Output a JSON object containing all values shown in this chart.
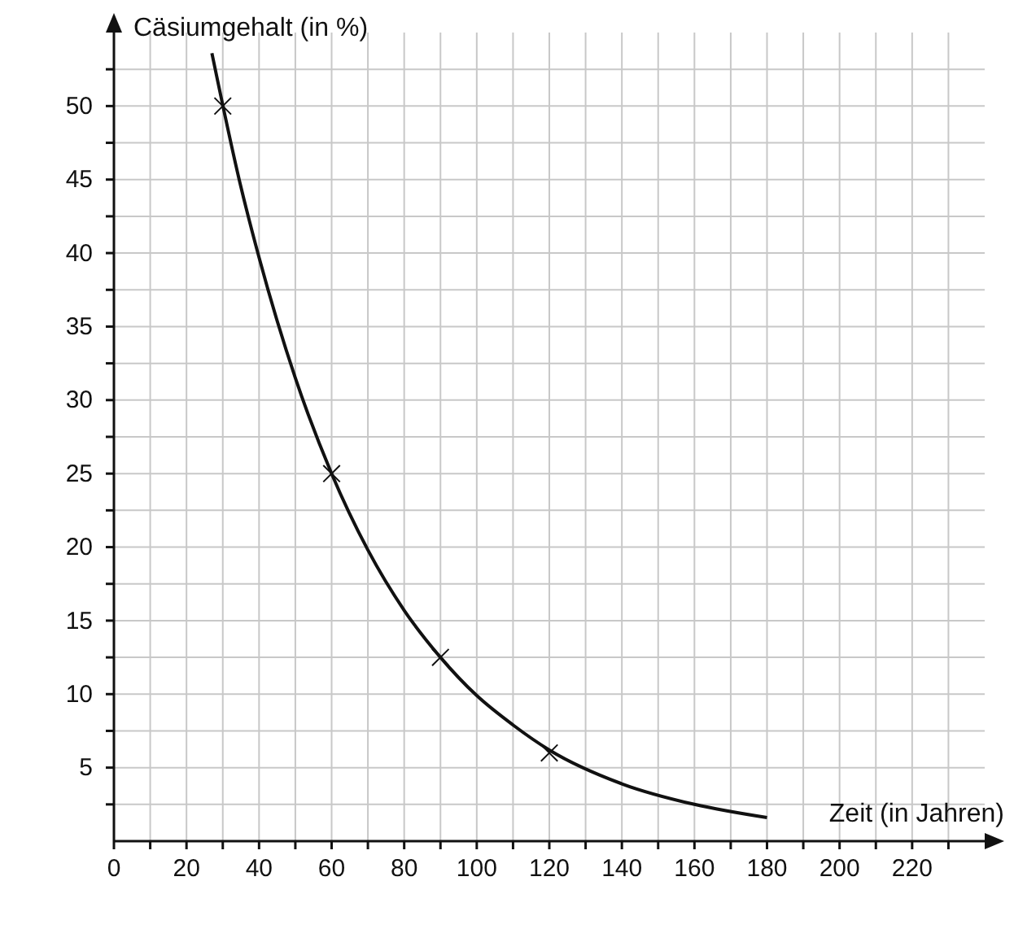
{
  "chart_data": {
    "type": "scatter",
    "xlabel": "Zeit (in Jahren)",
    "ylabel": "Cäsiumgehalt (in %)",
    "xlim": [
      0,
      240
    ],
    "ylim": [
      0,
      55
    ],
    "xticks": [
      {
        "value": 0,
        "label": "0"
      },
      {
        "value": 10,
        "label": null
      },
      20,
      {
        "value": 30,
        "label": null
      },
      40,
      {
        "value": 50,
        "label": null
      },
      60,
      {
        "value": 70,
        "label": null
      },
      80,
      {
        "value": 90,
        "label": null
      },
      100,
      {
        "value": 110,
        "label": null
      },
      120,
      {
        "value": 130,
        "label": null
      },
      140,
      {
        "value": 150,
        "label": null
      },
      160,
      {
        "value": 170,
        "label": null
      },
      180,
      {
        "value": 190,
        "label": null
      },
      200,
      {
        "value": 210,
        "label": null
      },
      220,
      {
        "value": 230,
        "label": null
      }
    ],
    "yticks": [
      {
        "value": 2.5,
        "label": null
      },
      5,
      {
        "value": 7.5,
        "label": null
      },
      10,
      {
        "value": 12.5,
        "label": null
      },
      15,
      {
        "value": 17.5,
        "label": null
      },
      20,
      {
        "value": 22.5,
        "label": null
      },
      25,
      {
        "value": 27.5,
        "label": null
      },
      30,
      {
        "value": 32.5,
        "label": null
      },
      35,
      {
        "value": 37.5,
        "label": null
      },
      40,
      {
        "value": 42.5,
        "label": null
      },
      45,
      {
        "value": 47.5,
        "label": null
      },
      50,
      {
        "value": 52.5,
        "label": null
      }
    ],
    "grid": true,
    "marker": "cross",
    "series": [
      {
        "type": "line",
        "marker": "none",
        "color": "#111111",
        "x": [
          27,
          35,
          40,
          50,
          60,
          70,
          80,
          90,
          100,
          110,
          120,
          140,
          160,
          180
        ],
        "values": [
          53.6,
          44.5,
          39.7,
          31.5,
          25,
          19.8,
          15.7,
          12.5,
          9.9,
          7.9,
          6.2,
          3.9,
          2.5,
          1.6
        ]
      },
      {
        "color": "#111111",
        "x": [
          30,
          60,
          90,
          120
        ],
        "values": [
          50,
          25,
          12.5,
          6
        ]
      }
    ]
  }
}
